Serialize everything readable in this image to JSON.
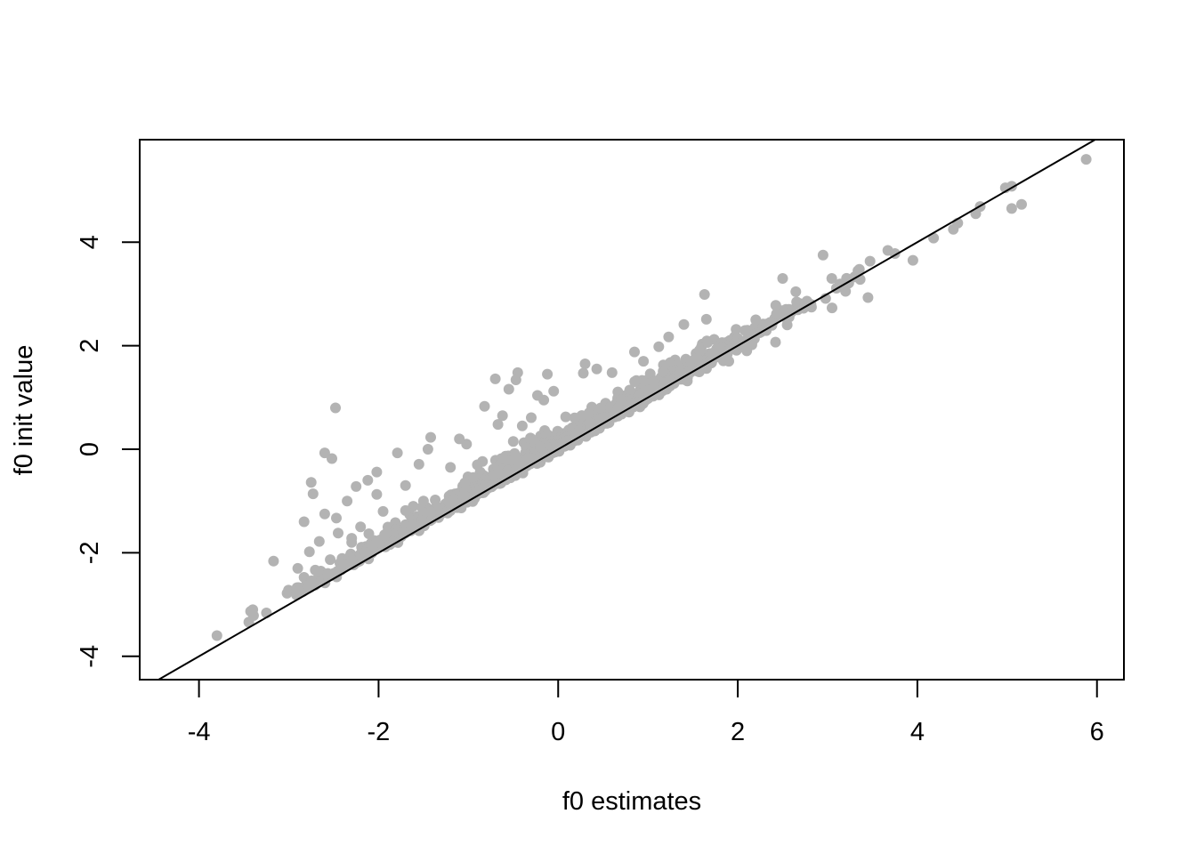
{
  "chart_data": {
    "type": "scatter",
    "title": "",
    "xlabel": "f0 estimates",
    "ylabel": "f0 init value",
    "xlim": [
      -4.66,
      6.3
    ],
    "ylim": [
      -4.45,
      5.98
    ],
    "x_ticks": [
      -4,
      -2,
      0,
      2,
      4,
      6
    ],
    "y_ticks": [
      -4,
      -2,
      0,
      2,
      4
    ],
    "x_tick_labels": [
      "-4",
      "-2",
      "0",
      "2",
      "4",
      "6"
    ],
    "y_tick_labels": [
      "-4",
      "-2",
      "0",
      "2",
      "4"
    ],
    "grid": false,
    "legend": "none",
    "point_color": "#b3b3b3",
    "line_color": "#000000",
    "reference_line": {
      "intercept": 0,
      "slope": 1
    },
    "main_cloud": {
      "x_range": [
        -4.27,
        5.05
      ],
      "intercept_at_min_x": 0.19,
      "intercept_at_max_x": 0.0,
      "x_spread_sd": 1.35,
      "count": 1500
    },
    "points": [
      [
        5.88,
        5.6
      ],
      [
        5.16,
        4.73
      ],
      [
        5.05,
        5.08
      ],
      [
        5.05,
        4.65
      ],
      [
        4.98,
        5.05
      ],
      [
        4.7,
        4.69
      ],
      [
        4.45,
        4.37
      ],
      [
        4.18,
        4.08
      ],
      [
        3.95,
        3.65
      ],
      [
        3.45,
        2.93
      ],
      [
        3.3,
        3.33
      ],
      [
        3.05,
        2.73
      ],
      [
        2.95,
        3.75
      ],
      [
        2.5,
        3.3
      ],
      [
        2.55,
        2.4
      ],
      [
        2.42,
        2.07
      ],
      [
        2.2,
        2.5
      ],
      [
        2.15,
        2.2
      ],
      [
        2.1,
        1.9
      ],
      [
        1.9,
        1.7
      ],
      [
        1.63,
        2.99
      ],
      [
        1.65,
        2.51
      ],
      [
        1.4,
        2.41
      ],
      [
        1.23,
        2.17
      ],
      [
        1.12,
        1.98
      ],
      [
        0.95,
        1.7
      ],
      [
        0.85,
        1.88
      ],
      [
        0.6,
        1.48
      ],
      [
        0.43,
        1.55
      ],
      [
        0.3,
        1.65
      ],
      [
        0.28,
        1.47
      ],
      [
        -0.12,
        1.45
      ],
      [
        -0.23,
        1.04
      ],
      [
        -0.05,
        1.12
      ],
      [
        -0.16,
        0.95
      ],
      [
        -0.45,
        1.48
      ],
      [
        -0.47,
        1.34
      ],
      [
        -0.55,
        1.16
      ],
      [
        -0.7,
        1.36
      ],
      [
        -0.82,
        0.83
      ],
      [
        -0.62,
        0.65
      ],
      [
        -0.67,
        0.48
      ],
      [
        -0.3,
        0.61
      ],
      [
        -0.5,
        0.15
      ],
      [
        -0.4,
        0.45
      ],
      [
        -1.02,
        0.1
      ],
      [
        -1.1,
        0.2
      ],
      [
        -1.42,
        0.23
      ],
      [
        -1.45,
        0.0
      ],
      [
        -1.55,
        -0.29
      ],
      [
        -1.79,
        -0.07
      ],
      [
        -2.02,
        -0.44
      ],
      [
        -2.02,
        -0.87
      ],
      [
        -2.12,
        -0.6
      ],
      [
        -2.25,
        -0.72
      ],
      [
        -2.35,
        -1.0
      ],
      [
        -2.52,
        -0.18
      ],
      [
        -2.47,
        -1.33
      ],
      [
        -2.2,
        -1.5
      ],
      [
        -2.48,
        0.8
      ],
      [
        -2.6,
        -0.07
      ],
      [
        -2.75,
        -0.64
      ],
      [
        -2.73,
        -0.86
      ],
      [
        -2.6,
        -1.25
      ],
      [
        -2.45,
        -1.62
      ],
      [
        -2.3,
        -1.72
      ],
      [
        -2.83,
        -1.4
      ],
      [
        -2.77,
        -1.98
      ],
      [
        -2.66,
        -1.78
      ],
      [
        -3.17,
        -2.16
      ],
      [
        -2.9,
        -2.3
      ],
      [
        -2.3,
        -1.8
      ],
      [
        -1.95,
        -1.2
      ],
      [
        -1.7,
        -0.7
      ],
      [
        -1.2,
        -0.35
      ],
      [
        -0.9,
        -0.3
      ],
      [
        -1.5,
        -1.0
      ],
      [
        -0.2,
        0.05
      ],
      [
        0.7,
        0.95
      ],
      [
        1.55,
        1.75
      ],
      [
        2.05,
        2.08
      ],
      [
        2.6,
        2.65
      ],
      [
        3.2,
        3.05
      ],
      [
        3.75,
        3.78
      ],
      [
        4.4,
        4.25
      ],
      [
        4.65,
        4.55
      ],
      [
        1.0,
        0.98
      ],
      [
        0.2,
        0.3
      ],
      [
        -3.4,
        -3.1
      ],
      [
        -3.8,
        -3.6
      ]
    ]
  }
}
